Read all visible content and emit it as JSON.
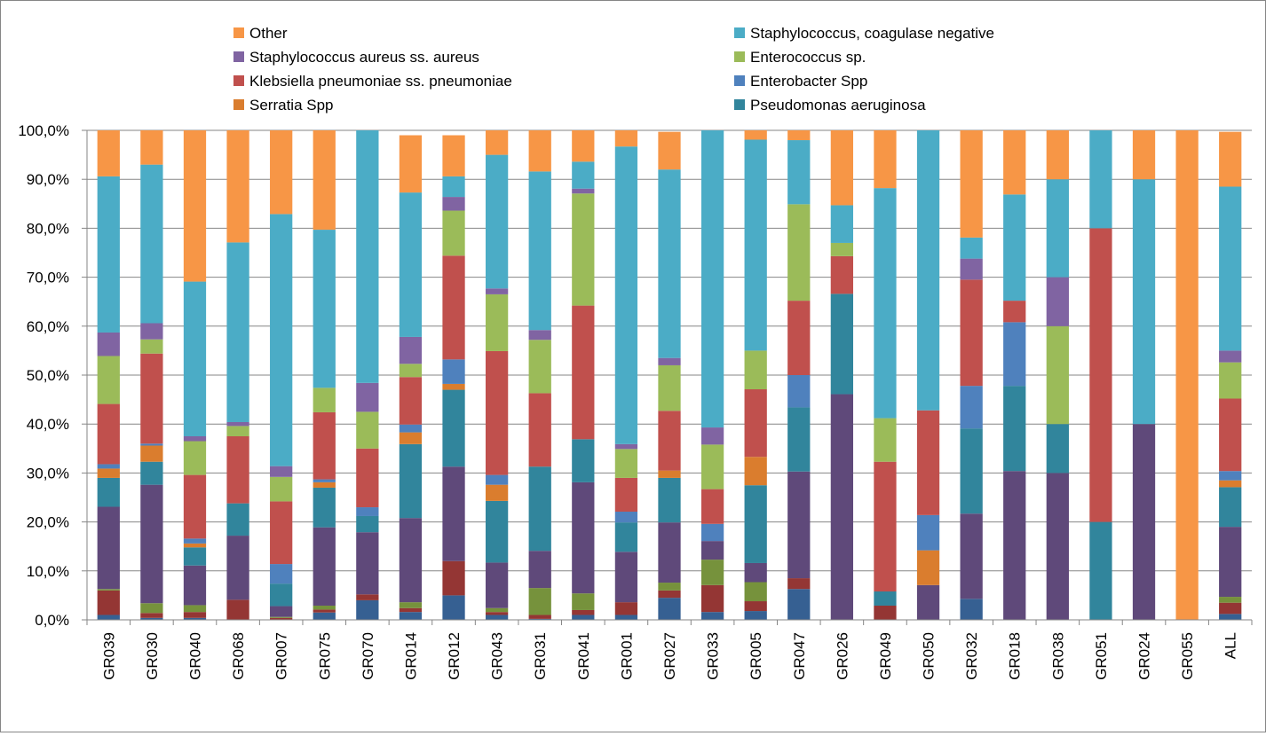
{
  "chart_data": {
    "type": "bar",
    "stacked": true,
    "percent": true,
    "categories": [
      "GR039",
      "GR030",
      "GR040",
      "GR068",
      "GR007",
      "GR075",
      "GR070",
      "GR014",
      "GR012",
      "GR043",
      "GR031",
      "GR041",
      "GR001",
      "GR027",
      "GR033",
      "GR005",
      "GR047",
      "GR026",
      "GR049",
      "GR050",
      "GR032",
      "GR018",
      "GR038",
      "GR051",
      "GR024",
      "GR055",
      "ALL"
    ],
    "y_ticks": [
      "0,0%",
      "10,0%",
      "20,0%",
      "30,0%",
      "40,0%",
      "50,0%",
      "60,0%",
      "70,0%",
      "80,0%",
      "90,0%",
      "100,0%"
    ],
    "ylim": [
      0,
      100
    ],
    "legend_position": "top",
    "stack_order_bottom_to_top": [
      "Enterobacter Spp",
      "Klebsiella pneumoniae ss. pneumoniae (lower)",
      "Enterococcus sp. (lower)",
      "Staphylococcus aureus ss. aureus (lower)",
      "Pseudomonas aeruginosa",
      "Serratia Spp",
      "Enterobacter Spp (upper)",
      "Klebsiella pneumoniae ss. pneumoniae",
      "Enterococcus sp.",
      "Staphylococcus aureus ss. aureus",
      "Staphylococcus, coagulase negative",
      "Other"
    ],
    "legend": [
      {
        "name": "Other",
        "color": "#F79646"
      },
      {
        "name": "Staphylococcus, coagulase negative",
        "color": "#4BACC6"
      },
      {
        "name": "Staphylococcus aureus ss. aureus",
        "color": "#8064A2"
      },
      {
        "name": "Enterococcus sp.",
        "color": "#9BBB59"
      },
      {
        "name": "Klebsiella pneumoniae ss. pneumoniae",
        "color": "#C0504D"
      },
      {
        "name": "Enterobacter Spp",
        "color": "#4F81BD"
      },
      {
        "name": "Serratia Spp",
        "color": "#DA7D2E"
      },
      {
        "name": "Pseudomonas aeruginosa",
        "color": "#31859C"
      }
    ],
    "series_colors": {
      "lower_blue": "#366092",
      "lower_red": "#943634",
      "lower_green": "#76923C",
      "lower_purple": "#5F497A",
      "pseudomonas": "#31859C",
      "serratia": "#DA7D2E",
      "enterobacter": "#4F81BD",
      "klebsiella": "#C0504D",
      "enterococcus": "#9BBB59",
      "aureus": "#8064A2",
      "coag_neg": "#4BACC6",
      "other": "#F79646"
    },
    "series_keys": [
      "lower_blue",
      "lower_red",
      "lower_green",
      "lower_purple",
      "pseudomonas",
      "serratia",
      "enterobacter",
      "klebsiella",
      "enterococcus",
      "aureus",
      "coag_neg",
      "other"
    ],
    "values": [
      [
        1.0,
        5.0,
        0.3,
        16.8,
        5.9,
        1.9,
        0.9,
        12.3,
        9.8,
        4.8,
        31.9,
        9.4
      ],
      [
        0.4,
        1.0,
        2.0,
        24.2,
        4.7,
        3.3,
        0.4,
        18.4,
        2.9,
        3.3,
        32.4,
        7.0
      ],
      [
        0.4,
        1.2,
        1.4,
        8.1,
        3.7,
        0.8,
        1.0,
        13.0,
        6.9,
        1.0,
        31.6,
        30.9
      ],
      [
        0.0,
        4.1,
        0.0,
        13.1,
        6.6,
        0.0,
        0.0,
        13.7,
        2.1,
        0.8,
        36.7,
        22.9
      ],
      [
        0.0,
        0.4,
        0.2,
        2.2,
        4.6,
        0.0,
        4.0,
        12.8,
        5.0,
        2.2,
        51.5,
        17.1
      ],
      [
        1.5,
        0.6,
        0.8,
        16.0,
        8.1,
        1.1,
        0.6,
        13.7,
        5.0,
        0.0,
        32.3,
        20.3
      ],
      [
        4.0,
        1.2,
        0.0,
        12.7,
        3.3,
        0.0,
        1.8,
        12.0,
        7.5,
        5.9,
        51.6,
        0.0
      ],
      [
        1.6,
        0.8,
        1.2,
        17.2,
        15.1,
        2.4,
        1.6,
        9.7,
        2.7,
        5.5,
        29.5,
        11.7
      ],
      [
        5.0,
        7.0,
        0.0,
        19.3,
        15.7,
        1.2,
        5.0,
        21.2,
        9.2,
        2.8,
        4.2,
        8.4
      ],
      [
        1.0,
        0.6,
        0.8,
        9.3,
        12.6,
        3.3,
        2.0,
        25.3,
        11.6,
        1.2,
        27.3,
        5.0
      ],
      [
        0.2,
        0.8,
        5.5,
        7.6,
        17.2,
        0.0,
        0.0,
        15.0,
        10.9,
        2.0,
        32.4,
        8.4
      ],
      [
        1.0,
        1.0,
        3.4,
        22.7,
        8.8,
        0.0,
        0.0,
        27.3,
        22.9,
        1.0,
        5.5,
        6.4
      ],
      [
        1.0,
        2.6,
        0.0,
        10.3,
        6.0,
        0.0,
        2.2,
        6.9,
        5.9,
        1.0,
        60.8,
        3.3
      ],
      [
        4.5,
        1.5,
        1.6,
        12.3,
        9.1,
        1.5,
        0.0,
        12.2,
        9.3,
        1.5,
        38.5,
        7.7
      ],
      [
        1.6,
        5.5,
        5.2,
        3.8,
        0.0,
        0.0,
        3.5,
        7.1,
        9.1,
        3.5,
        60.7,
        0.0
      ],
      [
        1.8,
        2.0,
        3.9,
        3.9,
        15.9,
        5.8,
        0.0,
        13.8,
        7.9,
        0.0,
        43.1,
        1.9
      ],
      [
        6.3,
        2.2,
        0.0,
        21.8,
        13.1,
        0.0,
        6.6,
        15.2,
        19.7,
        0.0,
        13.1,
        2.0
      ],
      [
        0.0,
        0.0,
        0.0,
        46.1,
        20.5,
        0.0,
        0.0,
        7.7,
        2.7,
        0.0,
        7.7,
        15.3
      ],
      [
        0.0,
        2.9,
        0.0,
        0.0,
        2.9,
        0.0,
        0.0,
        26.5,
        8.9,
        0.0,
        47.0,
        11.8
      ],
      [
        0.0,
        0.0,
        0.0,
        7.1,
        0.0,
        7.1,
        7.2,
        21.4,
        0.0,
        0.0,
        57.2,
        0.0
      ],
      [
        4.3,
        0.0,
        0.0,
        17.4,
        17.4,
        0.0,
        8.7,
        21.7,
        0.0,
        4.3,
        4.3,
        21.9
      ],
      [
        0.0,
        0.0,
        0.0,
        30.4,
        17.4,
        0.0,
        13.0,
        4.4,
        0.0,
        0.0,
        21.7,
        13.1
      ],
      [
        0.0,
        0.0,
        0.0,
        30.0,
        10.0,
        0.0,
        0.0,
        0.0,
        20.0,
        10.0,
        20.0,
        10.0
      ],
      [
        0.0,
        0.0,
        0.0,
        0.0,
        20.0,
        0.0,
        0.0,
        60.0,
        0.0,
        0.0,
        20.0,
        0.0
      ],
      [
        0.0,
        0.0,
        0.0,
        40.0,
        0.0,
        0.0,
        0.0,
        0.0,
        0.0,
        0.0,
        50.0,
        10.0
      ],
      [
        0.0,
        0.0,
        0.0,
        0.0,
        0.0,
        0.0,
        0.0,
        0.0,
        0.0,
        0.0,
        0.0,
        100.0
      ],
      [
        1.2,
        2.3,
        1.2,
        14.3,
        8.1,
        1.4,
        1.9,
        14.8,
        7.4,
        2.4,
        33.5,
        11.2
      ]
    ]
  }
}
